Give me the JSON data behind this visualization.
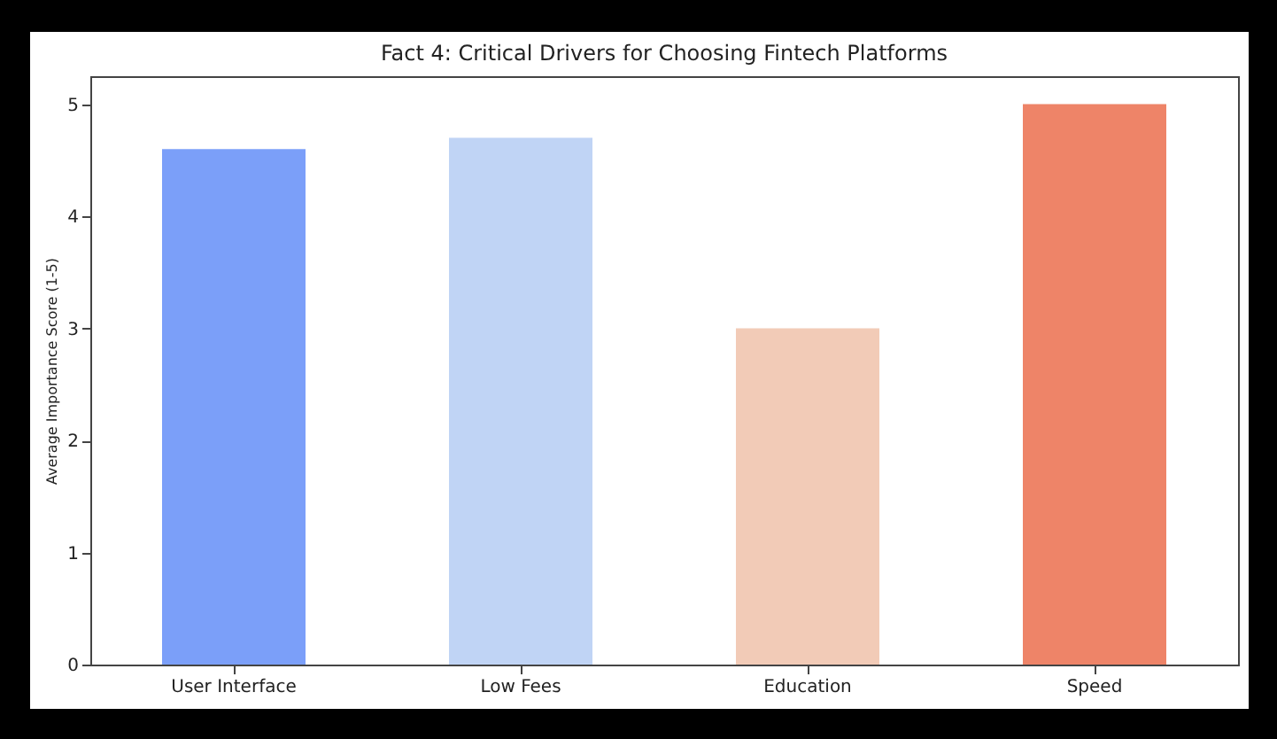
{
  "chart_data": {
    "type": "bar",
    "title": "Fact 4: Critical Drivers for Choosing Fintech Platforms",
    "ylabel": "Average Importance Score (1-5)",
    "categories": [
      "User Interface",
      "Low Fees",
      "Education",
      "Speed"
    ],
    "values": [
      4.6,
      4.7,
      3.0,
      5.0
    ],
    "colors": [
      "#7b9ff9",
      "#c0d4f5",
      "#f2cbb7",
      "#ee8468"
    ],
    "ylim": [
      0,
      5.25
    ],
    "yticks": [
      0,
      1,
      2,
      3,
      4,
      5
    ],
    "grid": false
  }
}
